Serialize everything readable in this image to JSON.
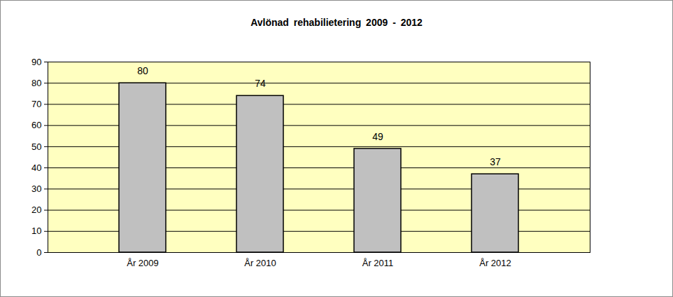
{
  "chart_data": {
    "type": "bar",
    "title": "Avlönad rehabilietering 2009 - 2012",
    "categories": [
      "År 2009",
      "År 2010",
      "År 2011",
      "År 2012"
    ],
    "values": [
      80,
      74,
      49,
      37
    ],
    "color": "#c0c0c0",
    "ylim": [
      0,
      90
    ],
    "yticks": [
      0,
      10,
      20,
      30,
      40,
      50,
      60,
      70,
      80,
      90
    ],
    "grid": true,
    "data_labels": true
  }
}
